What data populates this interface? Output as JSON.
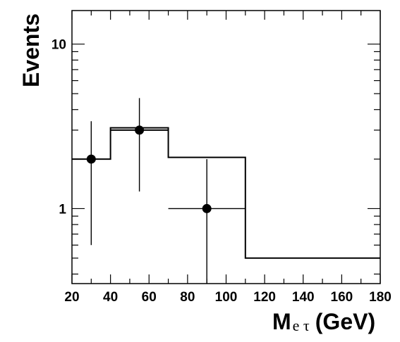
{
  "chart_data": {
    "type": "line",
    "xlabel": {
      "main": "M",
      "sub": "e τ",
      "unit": "(GeV)"
    },
    "ylabel": "Events",
    "xlim": [
      20,
      180
    ],
    "ylim": [
      0.35,
      16
    ],
    "y_scale": "log",
    "grid": false,
    "x_ticks": [
      "20",
      "40",
      "60",
      "80",
      "100",
      "120",
      "140",
      "160",
      "180"
    ],
    "y_ticks": [
      "1",
      "10"
    ],
    "series": [
      {
        "style": "histogram",
        "bin_edges": [
          20,
          40,
          70,
          110,
          180
        ],
        "values": [
          2,
          3.1,
          2.05,
          0.5
        ]
      },
      {
        "style": "histogram",
        "bin_edges": [
          40,
          70
        ],
        "values": [
          3.0
        ]
      },
      {
        "style": "points-with-errors",
        "points": [
          {
            "x": 30,
            "y": 2,
            "y_low": 0.6,
            "y_high": 3.4,
            "x_low": 30,
            "x_high": 30
          },
          {
            "x": 55,
            "y": 3,
            "y_low": 1.27,
            "y_high": 4.7,
            "x_low": 55,
            "x_high": 55
          },
          {
            "x": 90,
            "y": 1,
            "y_low": 0.35,
            "y_high": 2.0,
            "x_low": 70,
            "x_high": 110
          }
        ]
      }
    ]
  }
}
